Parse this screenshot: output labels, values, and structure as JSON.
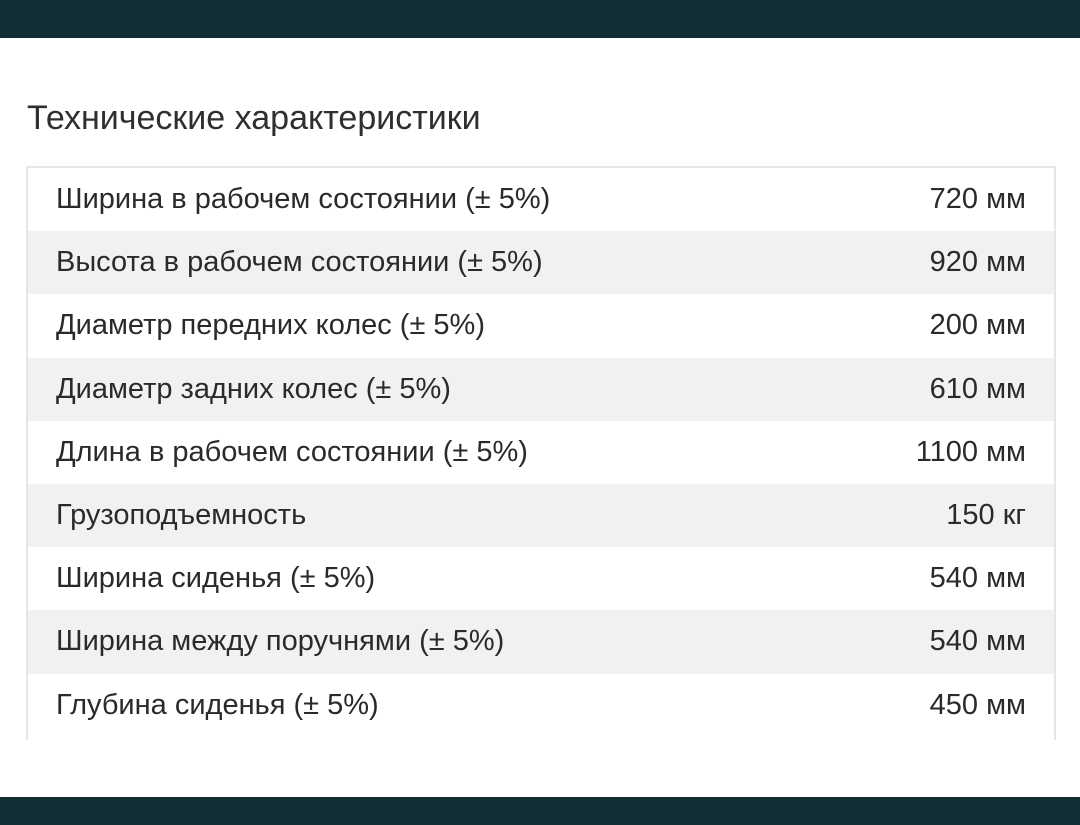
{
  "page": {
    "title": "Технические характеристики"
  },
  "specs": [
    {
      "label": "Ширина в рабочем состоянии (± 5%)",
      "value": "720 мм"
    },
    {
      "label": "Высота в рабочем состоянии (± 5%)",
      "value": "920 мм"
    },
    {
      "label": "Диаметр передних колес (± 5%)",
      "value": "200 мм"
    },
    {
      "label": "Диаметр задних колес (± 5%)",
      "value": "610 мм"
    },
    {
      "label": "Длина в рабочем состоянии (± 5%)",
      "value": "1100 мм"
    },
    {
      "label": "Грузоподъемность",
      "value": "150 кг"
    },
    {
      "label": "Ширина сиденья (± 5%)",
      "value": "540 мм"
    },
    {
      "label": "Ширина между поручнями (± 5%)",
      "value": "540 мм"
    },
    {
      "label": "Глубина сиденья (± 5%)",
      "value": "450 мм"
    }
  ],
  "colors": {
    "bar": "#132d35",
    "stripe": "#f1f1f1",
    "border": "#e6e6e6"
  }
}
